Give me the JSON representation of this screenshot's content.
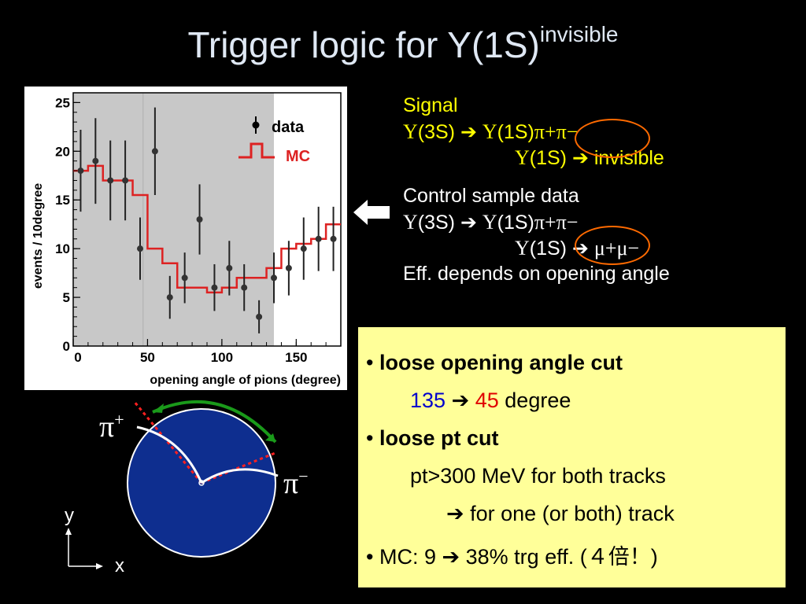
{
  "title": {
    "main": "Trigger logic for Y(1S)",
    "sup": "invisible"
  },
  "plot": {
    "ylabel": "events / 10degree",
    "xlabel": "opening angle of pions (degree)",
    "legend": {
      "data": "data",
      "mc": "MC"
    },
    "x_ticks": [
      "0",
      "50",
      "100",
      "150"
    ],
    "y_ticks": [
      "0",
      "5",
      "10",
      "15",
      "20",
      "25"
    ]
  },
  "chart_data": {
    "type": "scatter",
    "xlabel": "opening angle of pions (degree)",
    "ylabel": "events / 10degree",
    "xlim": [
      0,
      180
    ],
    "ylim": [
      0,
      26
    ],
    "shaded_region": [
      0,
      135
    ],
    "legend_placement": "top-right",
    "series": [
      {
        "name": "data",
        "kind": "points_with_errors",
        "x": [
          5,
          15,
          25,
          35,
          45,
          55,
          65,
          75,
          85,
          95,
          105,
          115,
          125,
          135,
          145,
          155,
          165,
          175
        ],
        "y": [
          18,
          19,
          17,
          17,
          10,
          20,
          5,
          7,
          13,
          6,
          8,
          6,
          3,
          7,
          8,
          10,
          11,
          11
        ],
        "err": [
          4.2,
          4.4,
          4.1,
          4.1,
          3.2,
          4.5,
          2.2,
          2.6,
          3.6,
          2.4,
          2.8,
          2.4,
          1.7,
          2.6,
          2.8,
          3.2,
          3.3,
          3.3
        ]
      },
      {
        "name": "MC",
        "kind": "step",
        "x_edges": [
          0,
          10,
          20,
          30,
          40,
          50,
          60,
          70,
          80,
          90,
          100,
          110,
          120,
          130,
          140,
          150,
          160,
          170,
          180
        ],
        "y": [
          18,
          18.5,
          17,
          17,
          15.5,
          10,
          8.5,
          6,
          6,
          5.5,
          6,
          7,
          7,
          8,
          10,
          10.5,
          11,
          12.5
        ]
      }
    ]
  },
  "signal": {
    "heading": "Signal",
    "decay1": {
      "parent": "(3S)",
      "child": "(1S)",
      "pions": "π+π−"
    },
    "decay2": {
      "child": "(1S)",
      "result": "invisible"
    }
  },
  "control": {
    "heading": "Control sample data",
    "decay1": {
      "parent": "(3S)",
      "child": "(1S)",
      "pions": "π+π−"
    },
    "decay2": {
      "child": "(1S)",
      "result": "μ+μ−"
    },
    "note": "Eff. depends on opening angle"
  },
  "box": {
    "bullet1": "loose opening angle cut",
    "cut_from": "135",
    "cut_to": "45",
    "cut_unit": "degree",
    "bullet2": "loose pt cut",
    "pt_rule": "pt>300 MeV for both tracks",
    "pt_new": "for one (or both) track",
    "mc_prefix": "MC: 9",
    "mc_suffix": "38% trg eff. (",
    "mc_japanese": "４倍！",
    "mc_close": ")"
  },
  "diagram": {
    "pi_plus_label": "π",
    "pi_plus_sup": "+",
    "pi_minus_label": "π",
    "pi_minus_sup": "−",
    "axis_y": "y",
    "axis_x": "x"
  },
  "symbols": {
    "upsilon": "Υ"
  },
  "colors": {
    "title": "#dfe8f4",
    "signal": "#ffff00",
    "circle": "#ff6a00",
    "box_bg": "#ffff99",
    "disk": "#0e2e8f",
    "arc": "#1a9a1a",
    "red_line": "#ff2020",
    "mc": "#dd2222",
    "shade": "#c8c8c8"
  }
}
